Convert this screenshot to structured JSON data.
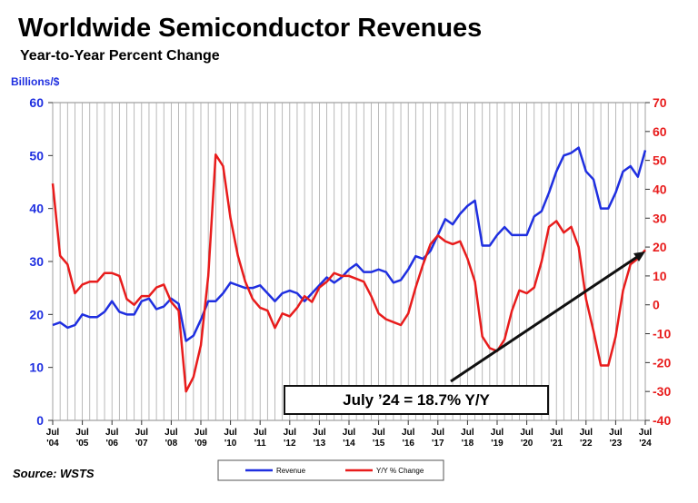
{
  "chart_data": {
    "type": "line",
    "title": "Worldwide Semiconductor Revenues",
    "subtitle": "Year-to-Year Percent Change",
    "y_label": "Billions/$",
    "source": "Source: WSTS",
    "annotation": "July ’24 = 18.7% Y/Y",
    "categories": [
      "Jul '04",
      null,
      null,
      null,
      "Jul '05",
      null,
      null,
      null,
      "Jul '06",
      null,
      null,
      null,
      "Jul '07",
      null,
      null,
      null,
      "Jul '08",
      null,
      null,
      null,
      "Jul '09",
      null,
      null,
      null,
      "Jul '10",
      null,
      null,
      null,
      "Jul '11",
      null,
      null,
      null,
      "Jul '12",
      null,
      null,
      null,
      "Jul '13",
      null,
      null,
      null,
      "Jul '14",
      null,
      null,
      null,
      "Jul '15",
      null,
      null,
      null,
      "Jul '16",
      null,
      null,
      null,
      "Jul '17",
      null,
      null,
      null,
      "Jul '18",
      null,
      null,
      null,
      "Jul '19",
      null,
      null,
      null,
      "Jul '20",
      null,
      null,
      null,
      "Jul '21",
      null,
      null,
      null,
      "Jul '22",
      null,
      null,
      null,
      "Jul '23",
      null,
      null,
      null,
      "Jul '24"
    ],
    "series": [
      {
        "name": "Revenue",
        "color": "#1f2fe0",
        "values": [
          18,
          18.5,
          17.5,
          18,
          20,
          19.5,
          19.5,
          20.5,
          22.5,
          20.5,
          20,
          20,
          22.5,
          23,
          21,
          21.5,
          23,
          22,
          15,
          16,
          19,
          22.5,
          22.5,
          24,
          26,
          25.5,
          25,
          25,
          25.5,
          24,
          22.5,
          24,
          24.5,
          24,
          22.5,
          24,
          25.5,
          27,
          26,
          27,
          28.5,
          29.5,
          28,
          28,
          28.5,
          28,
          26,
          26.5,
          28.5,
          31,
          30.5,
          32,
          35,
          38,
          37,
          39,
          40.5,
          41.5,
          33,
          33,
          35,
          36.5,
          35,
          35,
          35,
          38.5,
          39.5,
          43,
          47,
          50,
          50.5,
          51.5,
          47,
          45.5,
          40,
          40,
          43,
          47,
          48,
          46,
          51
        ]
      },
      {
        "name": "Y/Y % Change",
        "color": "#e81c1c",
        "axis": "y2",
        "values": [
          42,
          17,
          14,
          4,
          7,
          8,
          8,
          11,
          11,
          10,
          2,
          0,
          3,
          3,
          6,
          7,
          1,
          -2,
          -30,
          -25,
          -14,
          10,
          52,
          48,
          30,
          17,
          8,
          2,
          -1,
          -2,
          -8,
          -3,
          -4,
          -1,
          3,
          1,
          6,
          8,
          11,
          10,
          10,
          9,
          8,
          3,
          -3,
          -5,
          -6,
          -7,
          -3,
          6,
          14,
          21,
          24,
          22,
          21,
          22,
          16,
          8,
          -11,
          -15,
          -16,
          -12,
          -2,
          5,
          4,
          6,
          15,
          27,
          29,
          25,
          27,
          20,
          2,
          -9,
          -21,
          -21,
          -11,
          5,
          14,
          16,
          19
        ]
      }
    ],
    "ylim": [
      0,
      60
    ],
    "yticks": [
      0,
      10,
      20,
      30,
      40,
      50,
      60
    ],
    "y2lim": [
      -40,
      70
    ],
    "y2ticks": [
      -40,
      -30,
      -20,
      -10,
      0,
      10,
      20,
      30,
      40,
      50,
      60,
      70
    ]
  }
}
